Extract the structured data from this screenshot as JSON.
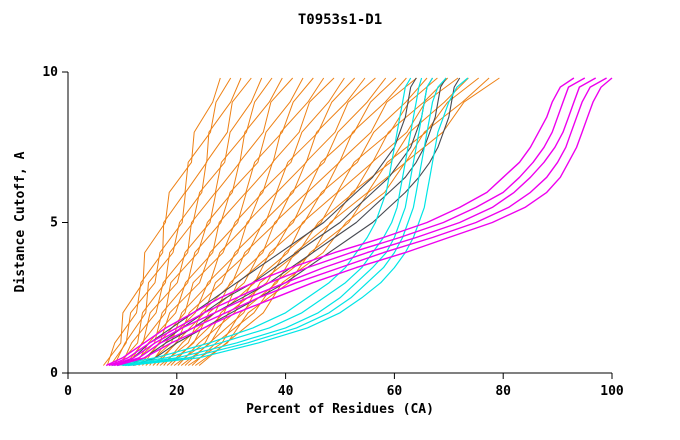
{
  "chart_data": {
    "type": "line",
    "title": "T0953s1-D1",
    "xlabel": "Percent of Residues (CA)",
    "ylabel": "Distance Cutoff, A",
    "xlim": [
      0,
      100
    ],
    "ylim": [
      0,
      10
    ],
    "xticks": [
      0,
      20,
      40,
      60,
      80,
      100
    ],
    "yticks": [
      0,
      5,
      10
    ],
    "grid": false,
    "legend": "none",
    "axis_color": "#000000",
    "background": "#ffffff",
    "groups": [
      {
        "name": "orange-models",
        "color": "#ee8115",
        "width": 1,
        "cutoffs": [
          0.25,
          1,
          2,
          3,
          4,
          5,
          6,
          7,
          8,
          9,
          9.8
        ],
        "series": [
          [
            6.5,
            9.7,
            10.1,
            13.8,
            14.1,
            17.9,
            18.6,
            22.7,
            23.2,
            26.6,
            28
          ],
          [
            7.2,
            8.6,
            12.6,
            13.4,
            17.4,
            17.6,
            21.5,
            22.1,
            26.2,
            27.2,
            29.9
          ],
          [
            7.8,
            10.7,
            11.5,
            16,
            16.9,
            21,
            21.6,
            25.5,
            25.9,
            29.9,
            31.8
          ],
          [
            8.5,
            10.5,
            14.3,
            14.8,
            19.3,
            20.5,
            24.6,
            25.4,
            29.3,
            30.2,
            33.7
          ],
          [
            9.1,
            12.8,
            13.7,
            17.9,
            18.7,
            23,
            24.2,
            28.8,
            29.8,
            33.7,
            35.6
          ],
          [
            9.8,
            11.7,
            16.2,
            17.5,
            22,
            22.7,
            27.1,
            28.2,
            32.8,
            34.3,
            37.5
          ],
          [
            10.4,
            13.8,
            15.1,
            20.1,
            21.5,
            26.1,
            27.2,
            31.6,
            32.5,
            37,
            39.4
          ],
          [
            11.1,
            13.6,
            17.9,
            18.9,
            23.9,
            25.6,
            30.2,
            31.5,
            35.9,
            37.3,
            41.3
          ],
          [
            11.7,
            15.9,
            17.3,
            22,
            23.3,
            28.1,
            29.8,
            34.9,
            36.4,
            40.8,
            43.2
          ],
          [
            12.4,
            14.8,
            19.8,
            21.6,
            26.6,
            27.8,
            32.7,
            34.3,
            39.4,
            41.4,
            45.1
          ],
          [
            13,
            16.9,
            18.7,
            24.2,
            26.1,
            31.2,
            32.8,
            37.7,
            39.1,
            44.1,
            47
          ],
          [
            13.7,
            16.7,
            21.5,
            23,
            28.5,
            30.7,
            35.8,
            37.6,
            42.5,
            44.4,
            48.9
          ],
          [
            14.3,
            19,
            20.9,
            26.1,
            27.9,
            33.2,
            35.4,
            41,
            43,
            47.9,
            50.8
          ],
          [
            15,
            17.9,
            23.4,
            25.7,
            31.2,
            32.9,
            38.3,
            40.4,
            46,
            48.5,
            52.7
          ],
          [
            15.6,
            20,
            22.3,
            28.3,
            30.7,
            36.3,
            38.4,
            43.8,
            45.7,
            51.2,
            54.6
          ],
          [
            16.3,
            19.8,
            25.1,
            27.1,
            33.1,
            35.8,
            41.4,
            43.7,
            49.1,
            51.5,
            56.5
          ],
          [
            16.9,
            22.1,
            24.5,
            30.2,
            32.5,
            38.3,
            41,
            47.1,
            49.6,
            55,
            58.4
          ],
          [
            17.6,
            21,
            27,
            29.8,
            35.8,
            38,
            43.9,
            46.5,
            52.6,
            55.6,
            60.3
          ],
          [
            18.2,
            23.1,
            25.9,
            32.4,
            35.3,
            41.4,
            44,
            49.9,
            52.3,
            58.3,
            62.2
          ],
          [
            18.9,
            22.9,
            28.7,
            31.2,
            37.7,
            40.9,
            47,
            49.8,
            55.7,
            58.6,
            64.1
          ],
          [
            19.5,
            25.2,
            28.1,
            34.3,
            37.1,
            43.4,
            46.6,
            53.2,
            56.2,
            62.1,
            66
          ],
          [
            20.2,
            24.1,
            30.6,
            33.9,
            40.4,
            43.1,
            49.5,
            52.6,
            59.2,
            62.7,
            67.9
          ],
          [
            20.8,
            26.2,
            29.5,
            36.5,
            39.9,
            46.5,
            49.6,
            56,
            58.9,
            65.4,
            69.8
          ],
          [
            21.5,
            26,
            32.3,
            35.3,
            42.3,
            46,
            52.6,
            55.9,
            62.3,
            65.7,
            71.7
          ],
          [
            22.1,
            28.3,
            31.7,
            38.4,
            41.7,
            48.5,
            52.2,
            59.3,
            62.8,
            69.2,
            73.6
          ],
          [
            22.8,
            27.2,
            34.2,
            38,
            45,
            48.2,
            55.1,
            58.7,
            65.8,
            69.8,
            75.5
          ],
          [
            23.4,
            29.3,
            33.1,
            40.6,
            44.5,
            51.6,
            55.2,
            62.1,
            65.5,
            72.5,
            77.4
          ],
          [
            24.1,
            29.1,
            35.9,
            39.4,
            46.9,
            51.1,
            58.2,
            62,
            68.9,
            72.8,
            79.3
          ]
        ]
      },
      {
        "name": "gray-models",
        "color": "#474a52",
        "width": 1.1,
        "cutoffs": [
          0.25,
          0.5,
          1,
          1.5,
          2,
          2.5,
          3,
          3.5,
          4,
          4.5,
          5,
          5.5,
          6,
          6.5,
          7,
          7.5,
          8,
          8.5,
          9,
          9.5,
          9.8
        ],
        "series": [
          [
            9,
            12,
            15,
            19,
            23,
            27,
            31,
            35,
            39,
            43,
            47,
            50,
            53,
            56,
            58,
            60,
            61,
            62,
            62.5,
            63,
            64
          ],
          [
            10,
            13,
            17,
            21,
            25,
            29,
            34,
            38,
            42,
            46,
            50,
            53,
            56,
            59,
            61,
            63,
            64,
            65,
            65.5,
            66,
            67
          ],
          [
            11,
            14,
            18,
            23,
            27,
            32,
            37,
            41,
            45,
            49,
            53,
            56,
            59,
            62,
            64,
            65.5,
            66.5,
            67.5,
            68,
            68.5,
            69.5
          ],
          [
            12,
            16,
            20,
            25,
            30,
            35,
            40,
            44,
            48,
            52,
            56,
            59,
            62,
            64.5,
            66.5,
            68,
            69,
            70,
            70.5,
            71,
            72
          ]
        ]
      },
      {
        "name": "cyan-models",
        "color": "#00e5e5",
        "width": 1.2,
        "cutoffs": [
          0.25,
          0.5,
          1,
          1.5,
          2,
          2.5,
          3,
          3.5,
          4,
          4.5,
          5,
          5.5,
          6,
          6.5,
          7,
          7.5,
          8,
          8.5,
          9,
          9.5,
          9.8
        ],
        "series": [
          [
            8,
            16,
            26,
            34,
            40,
            44,
            48,
            51,
            53,
            55,
            56.5,
            57.5,
            58.5,
            59,
            59.5,
            60,
            60.5,
            61,
            61.5,
            62,
            63
          ],
          [
            9,
            18,
            28,
            37,
            43,
            47,
            51,
            54,
            56,
            58,
            59.5,
            60.5,
            61,
            61.5,
            62,
            62.5,
            63,
            63.5,
            64,
            64.5,
            65
          ],
          [
            10,
            20,
            31,
            40,
            46,
            50,
            53,
            56,
            58.5,
            60,
            61,
            62,
            62.5,
            63,
            63.5,
            64,
            64.5,
            65,
            65.5,
            66,
            67
          ],
          [
            10.5,
            22,
            33,
            42,
            48,
            52,
            55,
            58,
            60,
            61.5,
            62.5,
            63.5,
            64,
            64.5,
            65,
            65.5,
            66,
            66.5,
            67,
            68,
            69.5
          ],
          [
            11,
            24,
            35,
            44,
            50,
            54,
            57.5,
            60,
            62,
            63.5,
            64.5,
            65.5,
            66,
            66.5,
            67,
            67.5,
            68,
            69,
            70,
            71.5,
            73.5
          ]
        ]
      },
      {
        "name": "magenta-models",
        "color": "#ee00ee",
        "width": 1.4,
        "cutoffs": [
          0.25,
          0.5,
          1,
          1.5,
          2,
          2.5,
          3,
          3.5,
          4,
          4.5,
          5,
          5.5,
          6,
          6.5,
          7,
          7.5,
          8,
          8.5,
          9,
          9.5,
          9.8
        ],
        "series": [
          [
            7,
            10,
            14,
            18,
            23,
            28,
            34,
            41,
            49,
            58,
            66,
            72,
            77,
            80,
            83,
            85,
            86.5,
            88,
            89,
            90.5,
            93
          ],
          [
            7.5,
            11,
            15,
            20,
            25,
            31,
            37,
            44,
            52,
            61,
            69,
            75,
            80,
            83,
            85.5,
            87.5,
            89,
            90,
            91,
            92,
            95
          ],
          [
            8,
            12,
            16,
            21,
            27,
            33,
            40,
            47,
            55,
            64,
            72,
            78,
            82,
            85,
            87.5,
            89.5,
            91,
            92,
            93,
            94,
            97
          ],
          [
            8.5,
            13,
            17,
            23,
            29,
            35,
            42,
            50,
            58,
            67,
            75,
            81,
            85,
            88,
            90,
            91.5,
            92.5,
            93.5,
            94.5,
            96,
            99
          ],
          [
            9,
            14,
            19,
            25,
            31,
            38,
            45,
            53,
            62,
            70,
            78,
            84,
            88,
            90.5,
            92,
            93.5,
            94.5,
            95.5,
            96.5,
            98,
            100
          ]
        ]
      }
    ]
  }
}
